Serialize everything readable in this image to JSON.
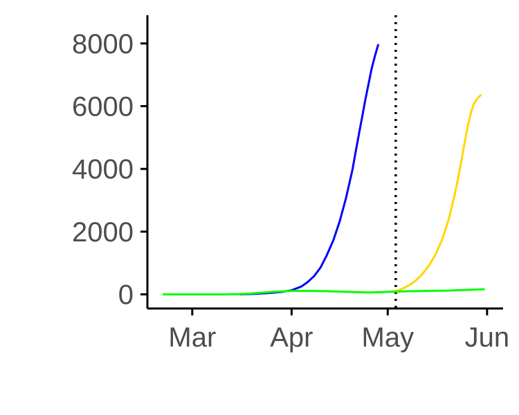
{
  "chart_data": {
    "type": "line",
    "title": "",
    "xlabel": "",
    "ylabel": "",
    "x_unit": "day of year",
    "xlim": [
      46,
      157
    ],
    "ylim": [
      -450,
      8900
    ],
    "grid": false,
    "legend": "none",
    "x_ticks": [
      {
        "label": "Mar",
        "value": 60
      },
      {
        "label": "Apr",
        "value": 91
      },
      {
        "label": "May",
        "value": 121
      },
      {
        "label": "Jun",
        "value": 152
      }
    ],
    "y_ticks": [
      {
        "label": "0",
        "value": 0
      },
      {
        "label": "2000",
        "value": 2000
      },
      {
        "label": "4000",
        "value": 4000
      },
      {
        "label": "6000",
        "value": 6000
      },
      {
        "label": "8000",
        "value": 8000
      }
    ],
    "vline": {
      "x": 123.5,
      "style": "dotted",
      "color": "#000000"
    },
    "series": [
      {
        "name": "blue",
        "color": "#0000ff",
        "x": [
          75,
          80,
          85,
          88,
          91,
          94,
          96,
          98,
          100,
          102,
          104,
          106,
          108,
          110,
          111,
          112,
          113,
          114,
          115,
          116,
          117,
          118
        ],
        "y": [
          0,
          20,
          50,
          80,
          130,
          250,
          390,
          580,
          850,
          1250,
          1720,
          2320,
          3080,
          3980,
          4550,
          5100,
          5650,
          6200,
          6700,
          7200,
          7600,
          7950
        ]
      },
      {
        "name": "yellow",
        "color": "#ffd700",
        "x": [
          122,
          124,
          126,
          128,
          130,
          132,
          134,
          136,
          138,
          140,
          142,
          143,
          144,
          145,
          146,
          147,
          148,
          149,
          150
        ],
        "y": [
          90,
          120,
          200,
          310,
          460,
          670,
          940,
          1290,
          1750,
          2380,
          3220,
          3720,
          4270,
          4830,
          5370,
          5810,
          6100,
          6250,
          6350
        ]
      },
      {
        "name": "green",
        "color": "#00ff00",
        "x": [
          51,
          60,
          70,
          76,
          80,
          85,
          91,
          97,
          103,
          109,
          115,
          121,
          127,
          133,
          139,
          145,
          151
        ],
        "y": [
          0,
          0,
          0,
          10,
          40,
          80,
          110,
          110,
          100,
          80,
          60,
          80,
          100,
          110,
          120,
          140,
          160
        ]
      }
    ]
  }
}
